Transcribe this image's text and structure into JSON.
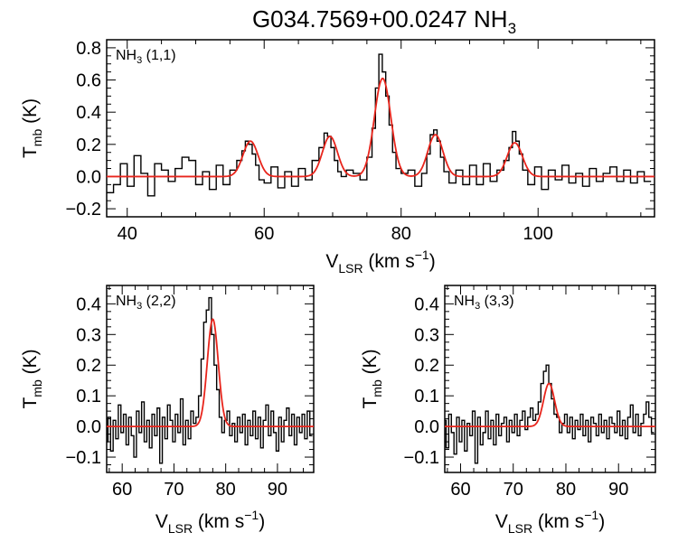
{
  "figure": {
    "title_main": "G034.7569+00.0247 NH",
    "title_sub": "3"
  },
  "colors": {
    "spectrum": "#000000",
    "fit": "#e8251c"
  },
  "chart_data": [
    {
      "type": "line",
      "panel": "top",
      "label_main": "NH",
      "label_sub": "3",
      "label_rest": " (1,1)",
      "xlabel_main": "V",
      "xlabel_sub": "LSR",
      "xlabel_rest": " (km s",
      "xlabel_sup": "−1",
      "xlabel_close": ")",
      "ylabel_main": "T",
      "ylabel_sub": "mb",
      "ylabel_rest": " (K)",
      "xlim": [
        37,
        117
      ],
      "ylim": [
        -0.25,
        0.85
      ],
      "xticks": [
        40,
        60,
        80,
        100
      ],
      "xtick_labels": [
        "40",
        "60",
        "80",
        "100"
      ],
      "yticks": [
        -0.2,
        0.0,
        0.2,
        0.4,
        0.6,
        0.8
      ],
      "ytick_labels": [
        "−0.2",
        "0.0",
        "0.2",
        "0.4",
        "0.6",
        "0.8"
      ],
      "fit_components": [
        {
          "center": 58.0,
          "amplitude": 0.22,
          "sigma": 1.1
        },
        {
          "center": 69.6,
          "amplitude": 0.25,
          "sigma": 1.1
        },
        {
          "center": 77.3,
          "amplitude": 0.61,
          "sigma": 1.2
        },
        {
          "center": 85.0,
          "amplitude": 0.26,
          "sigma": 1.1
        },
        {
          "center": 96.6,
          "amplitude": 0.21,
          "sigma": 1.1
        }
      ],
      "spectrum": {
        "x": [
          37.5,
          38.5,
          39.5,
          40.5,
          41.5,
          42.5,
          43.5,
          44.5,
          45.5,
          46.5,
          47.5,
          48.5,
          49.5,
          50.5,
          51.5,
          52.5,
          53.5,
          54.5,
          55.5,
          56.5,
          57.0,
          57.5,
          58.0,
          58.5,
          59.0,
          59.5,
          60.5,
          61.5,
          62.5,
          63.5,
          64.5,
          65.5,
          66.5,
          67.5,
          68.5,
          69.0,
          69.5,
          70.0,
          70.5,
          71.0,
          71.5,
          72.5,
          73.5,
          74.5,
          75.5,
          76.0,
          76.5,
          77.0,
          77.5,
          78.0,
          78.5,
          79.0,
          79.5,
          80.5,
          81.5,
          82.5,
          83.5,
          84.0,
          84.5,
          85.0,
          85.5,
          86.0,
          86.5,
          87.5,
          88.5,
          89.5,
          90.5,
          91.5,
          92.5,
          93.5,
          94.5,
          95.5,
          96.0,
          96.5,
          97.0,
          97.5,
          98.0,
          99.0,
          100.0,
          101.0,
          102.0,
          103.0,
          104.0,
          105.0,
          106.0,
          107.0,
          108.0,
          109.0,
          110.0,
          111.0,
          112.0,
          113.0,
          114.0,
          115.0,
          116.0
        ],
        "y": [
          -0.1,
          -0.05,
          0.08,
          -0.06,
          0.13,
          0.02,
          -0.12,
          0.08,
          0.04,
          -0.03,
          0.05,
          0.12,
          0.1,
          -0.05,
          0.03,
          -0.08,
          0.07,
          -0.05,
          0.04,
          0.1,
          0.16,
          0.22,
          0.2,
          0.14,
          0.07,
          -0.02,
          -0.04,
          0.06,
          -0.07,
          0.03,
          -0.06,
          0.05,
          -0.02,
          0.1,
          0.18,
          0.27,
          0.25,
          0.18,
          0.1,
          0.03,
          0.0,
          0.04,
          0.02,
          -0.02,
          0.12,
          0.3,
          0.55,
          0.76,
          0.65,
          0.5,
          0.32,
          0.15,
          0.05,
          0.02,
          0.04,
          -0.06,
          0.02,
          0.14,
          0.26,
          0.29,
          0.22,
          0.12,
          0.03,
          -0.04,
          0.04,
          -0.05,
          0.07,
          -0.05,
          0.08,
          -0.03,
          0.04,
          0.1,
          0.18,
          0.28,
          0.22,
          0.14,
          0.04,
          -0.05,
          0.06,
          -0.08,
          0.04,
          -0.02,
          0.07,
          -0.04,
          0.02,
          -0.06,
          0.05,
          -0.03,
          0.02,
          0.06,
          -0.03,
          0.04,
          -0.04,
          0.03,
          -0.03
        ]
      }
    },
    {
      "type": "line",
      "panel": "bottom-left",
      "label_main": "NH",
      "label_sub": "3",
      "label_rest": " (2,2)",
      "xlabel_main": "V",
      "xlabel_sub": "LSR",
      "xlabel_rest": " (km s",
      "xlabel_sup": "−1",
      "xlabel_close": ")",
      "ylabel_main": "T",
      "ylabel_sub": "mb",
      "ylabel_rest": " (K)",
      "xlim": [
        57,
        97
      ],
      "ylim": [
        -0.15,
        0.46
      ],
      "xticks": [
        60,
        70,
        80,
        90
      ],
      "xtick_labels": [
        "60",
        "70",
        "80",
        "90"
      ],
      "yticks": [
        -0.1,
        0.0,
        0.1,
        0.2,
        0.3,
        0.4
      ],
      "ytick_labels": [
        "−0.1",
        "0.0",
        "0.1",
        "0.2",
        "0.3",
        "0.4"
      ],
      "fit_components": [
        {
          "center": 77.5,
          "amplitude": 0.35,
          "sigma": 1.05
        }
      ],
      "spectrum": {
        "x": [
          57.0,
          57.5,
          58.0,
          58.5,
          59.0,
          59.5,
          60.0,
          60.5,
          61.0,
          61.5,
          62.0,
          62.5,
          63.0,
          63.5,
          64.0,
          64.5,
          65.0,
          65.5,
          66.0,
          66.5,
          67.0,
          67.5,
          68.0,
          68.5,
          69.0,
          69.5,
          70.0,
          70.5,
          71.0,
          71.5,
          72.0,
          72.5,
          73.0,
          73.5,
          74.0,
          74.5,
          75.0,
          75.5,
          76.0,
          76.5,
          77.0,
          77.5,
          78.0,
          78.5,
          79.0,
          79.5,
          80.0,
          80.5,
          81.0,
          81.5,
          82.0,
          82.5,
          83.0,
          83.5,
          84.0,
          84.5,
          85.0,
          85.5,
          86.0,
          86.5,
          87.0,
          87.5,
          88.0,
          88.5,
          89.0,
          89.5,
          90.0,
          90.5,
          91.0,
          91.5,
          92.0,
          92.5,
          93.0,
          93.5,
          94.0,
          94.5,
          95.0,
          95.5,
          96.0,
          96.5
        ],
        "y": [
          -0.05,
          0.03,
          -0.08,
          0.02,
          -0.04,
          0.07,
          -0.02,
          0.04,
          -0.06,
          0.03,
          -0.03,
          -0.1,
          0.05,
          -0.02,
          0.08,
          -0.05,
          0.02,
          -0.07,
          0.04,
          -0.03,
          0.06,
          -0.12,
          0.03,
          -0.04,
          0.07,
          0.02,
          -0.05,
          0.04,
          -0.02,
          0.09,
          -0.06,
          0.02,
          -0.04,
          0.05,
          0.01,
          0.03,
          0.1,
          0.22,
          0.34,
          0.38,
          0.42,
          0.3,
          0.2,
          0.12,
          0.03,
          -0.02,
          0.02,
          0.05,
          -0.03,
          0.01,
          -0.05,
          0.03,
          -0.02,
          0.04,
          -0.06,
          0.02,
          -0.03,
          0.05,
          -0.04,
          0.03,
          -0.07,
          0.02,
          0.07,
          -0.03,
          0.05,
          -0.02,
          -0.08,
          0.03,
          -0.05,
          0.02,
          0.06,
          -0.03,
          0.04,
          -0.06,
          0.03,
          -0.02,
          0.04,
          -0.04,
          0.05,
          -0.03
        ]
      }
    },
    {
      "type": "line",
      "panel": "bottom-right",
      "label_main": "NH",
      "label_sub": "3",
      "label_rest": " (3,3)",
      "xlabel_main": "V",
      "xlabel_sub": "LSR",
      "xlabel_rest": " (km s",
      "xlabel_sup": "−1",
      "xlabel_close": ")",
      "ylabel_main": "T",
      "ylabel_sub": "mb",
      "ylabel_rest": " (K)",
      "xlim": [
        57,
        97
      ],
      "ylim": [
        -0.15,
        0.46
      ],
      "xticks": [
        60,
        70,
        80,
        90
      ],
      "xtick_labels": [
        "60",
        "70",
        "80",
        "90"
      ],
      "yticks": [
        -0.1,
        0.0,
        0.1,
        0.2,
        0.3,
        0.4
      ],
      "ytick_labels": [
        "−0.1",
        "0.0",
        "0.1",
        "0.2",
        "0.3",
        "0.4"
      ],
      "fit_components": [
        {
          "center": 76.8,
          "amplitude": 0.14,
          "sigma": 1.05
        }
      ],
      "spectrum": {
        "x": [
          57.0,
          57.5,
          58.0,
          58.5,
          59.0,
          59.5,
          60.0,
          60.5,
          61.0,
          61.5,
          62.0,
          62.5,
          63.0,
          63.5,
          64.0,
          64.5,
          65.0,
          65.5,
          66.0,
          66.5,
          67.0,
          67.5,
          68.0,
          68.5,
          69.0,
          69.5,
          70.0,
          70.5,
          71.0,
          71.5,
          72.0,
          72.5,
          73.0,
          73.5,
          74.0,
          74.5,
          75.0,
          75.5,
          76.0,
          76.5,
          77.0,
          77.5,
          78.0,
          78.5,
          79.0,
          79.5,
          80.0,
          80.5,
          81.0,
          81.5,
          82.0,
          82.5,
          83.0,
          83.5,
          84.0,
          84.5,
          85.0,
          85.5,
          86.0,
          86.5,
          87.0,
          87.5,
          88.0,
          88.5,
          89.0,
          89.5,
          90.0,
          90.5,
          91.0,
          91.5,
          92.0,
          92.5,
          93.0,
          93.5,
          94.0,
          94.5,
          95.0,
          95.5,
          96.0,
          96.5
        ],
        "y": [
          0.02,
          -0.07,
          0.04,
          -0.02,
          -0.09,
          0.03,
          -0.05,
          0.02,
          -0.08,
          0.01,
          -0.03,
          0.05,
          -0.12,
          0.03,
          -0.06,
          -0.02,
          0.05,
          -0.04,
          0.02,
          -0.06,
          0.04,
          -0.03,
          0.01,
          0.03,
          -0.05,
          0.02,
          -0.02,
          0.04,
          -0.03,
          0.02,
          0.05,
          -0.01,
          0.03,
          0.06,
          0.02,
          0.04,
          0.08,
          0.14,
          0.18,
          0.2,
          0.14,
          0.09,
          0.04,
          0.03,
          -0.02,
          0.01,
          0.04,
          -0.02,
          0.03,
          -0.04,
          0.02,
          -0.01,
          0.04,
          -0.03,
          0.02,
          -0.05,
          0.03,
          0.01,
          -0.03,
          0.04,
          -0.02,
          0.02,
          -0.04,
          0.03,
          0.01,
          -0.02,
          0.05,
          -0.03,
          0.02,
          -0.04,
          0.03,
          0.07,
          -0.02,
          0.04,
          -0.03,
          0.01,
          0.04,
          0.08,
          0.03,
          -0.02
        ]
      }
    }
  ]
}
